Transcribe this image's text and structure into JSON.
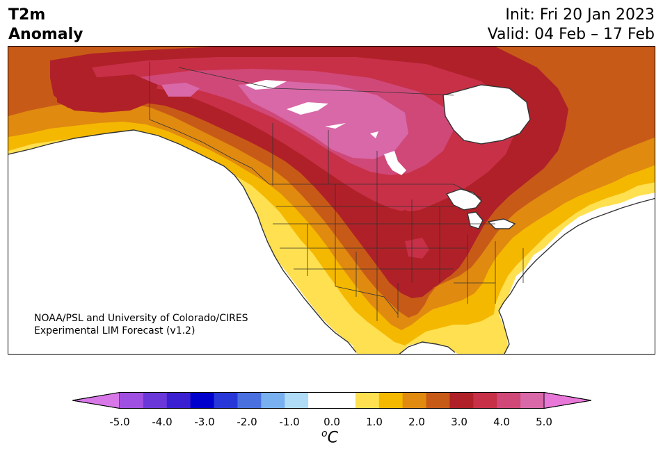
{
  "header": {
    "title_line1": "T2m",
    "title_line2": "Anomaly",
    "init": "Init: Fri 20 Jan 2023",
    "valid": "Valid: 04 Feb – 17 Feb"
  },
  "credit": {
    "line1": "NOAA/PSL and University of Colorado/CIRES",
    "line2": "Experimental LIM Forecast (v1.2)"
  },
  "colorbar": {
    "unit_base": "C",
    "unit_sup": "o",
    "ticks": [
      "-5.0",
      "-4.0",
      "-3.0",
      "-2.0",
      "-1.0",
      "0.0",
      "1.0",
      "2.0",
      "3.0",
      "4.0",
      "5.0"
    ],
    "under_color": "#d878e8",
    "over_color": "#e878d8",
    "bins": [
      "#d878e8",
      "#a050e0",
      "#6a38d8",
      "#3a20d0",
      "#0000cc",
      "#2838d8",
      "#4a70e0",
      "#78b0f0",
      "#b0dcf8",
      "#ffffff",
      "#ffffff",
      "#ffe050",
      "#f5b800",
      "#e08a10",
      "#c85a18",
      "#b02028",
      "#c83048",
      "#d04878",
      "#d868a8",
      "#e878d8"
    ]
  },
  "map": {
    "colors": {
      "ocean": "#ffffff",
      "c1": "#ffe050",
      "c15": "#f5b800",
      "c2": "#e08a10",
      "c25": "#c85a18",
      "c3": "#b02028",
      "c35": "#c83048",
      "c4": "#d04878",
      "c45": "#d868a8",
      "border": "#333333"
    }
  }
}
